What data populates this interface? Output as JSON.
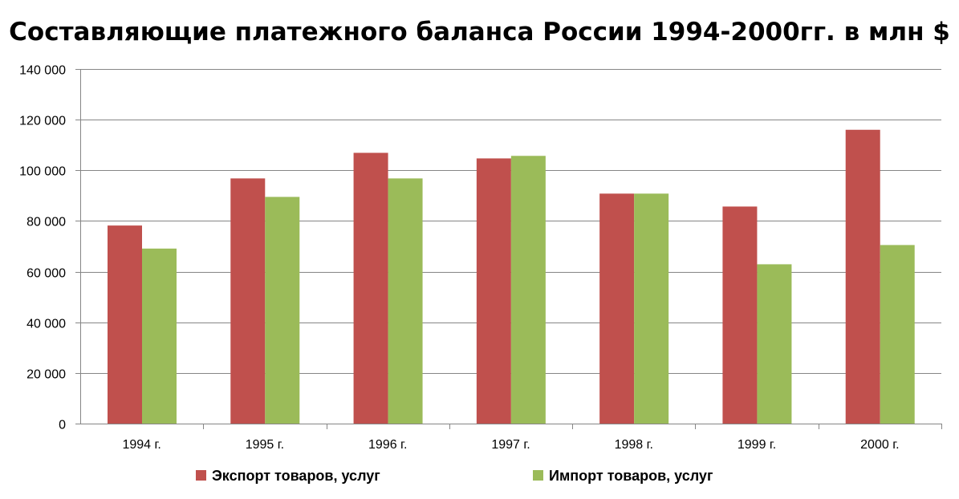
{
  "chart_data": {
    "type": "bar",
    "title": "Составляющие платежного баланса России 1994-2000гг. в млн $",
    "xlabel": "",
    "ylabel": "",
    "categories": [
      "1994 г.",
      "1995 г.",
      "1996 г.",
      "1997 г.",
      "1998 г.",
      "1999 г.",
      "2000 г."
    ],
    "series": [
      {
        "name": "Экспорт товаров, услуг",
        "color": "#C0504D",
        "values": [
          78200,
          96800,
          106900,
          104700,
          90800,
          85700,
          116000
        ]
      },
      {
        "name": "Импорт товаров, услуг",
        "color": "#9BBB59",
        "values": [
          69100,
          89500,
          96800,
          105700,
          90800,
          62900,
          70500
        ]
      }
    ],
    "ylim": [
      0,
      140000
    ],
    "y_ticks": [
      0,
      20000,
      40000,
      60000,
      80000,
      100000,
      120000,
      140000
    ],
    "y_tick_labels": [
      "0",
      "20 000",
      "40 000",
      "60 000",
      "80 000",
      "100 000",
      "120 000",
      "140 000"
    ],
    "grid": true,
    "legend_position": "bottom"
  }
}
